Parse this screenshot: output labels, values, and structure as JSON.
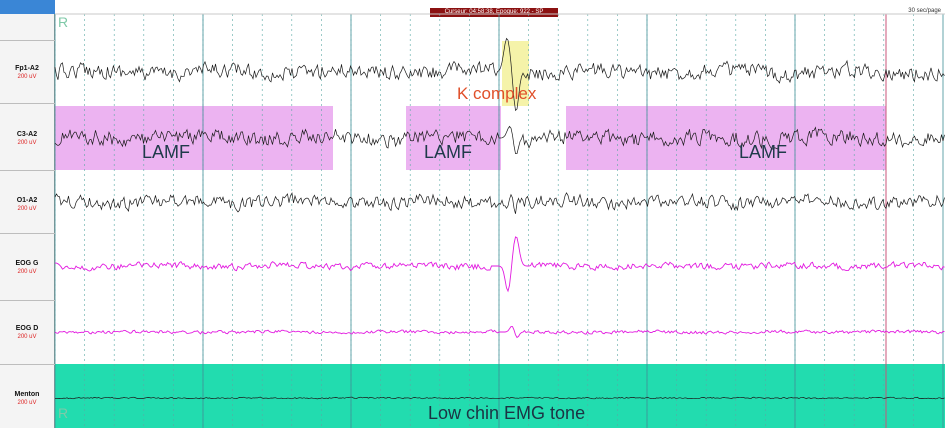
{
  "cursor_info": "Curseur: 04:58:38, Epoque: 922 - SP",
  "page_speed": "30 sec/page",
  "event_marker": "R",
  "channels": [
    {
      "name": "Fp1-A2",
      "gain": "200 uV",
      "color": "#1a1a1a"
    },
    {
      "name": "C3-A2",
      "gain": "200 uV",
      "color": "#1a1a1a"
    },
    {
      "name": "O1-A2",
      "gain": "200 uV",
      "color": "#1a1a1a"
    },
    {
      "name": "EOG G",
      "gain": "200 uV",
      "color": "#e21be0"
    },
    {
      "name": "EOG D",
      "gain": "200 uV",
      "color": "#e21be0"
    },
    {
      "name": "Menton",
      "gain": "200 uV",
      "color": "#1a1a1a"
    }
  ],
  "annotations": {
    "lamf_label": "LAMF",
    "k_complex_label": "K complex",
    "emg_label": "Low chin EMG tone"
  },
  "colors": {
    "lamf_highlight": "#e9a6ee",
    "k_complex_highlight": "#f2f094",
    "emg_band": "#22dcaf",
    "major_gridline": "#3f8f96",
    "minor_gridline": "#5aa9a4",
    "end_line": "#c8557a"
  }
}
